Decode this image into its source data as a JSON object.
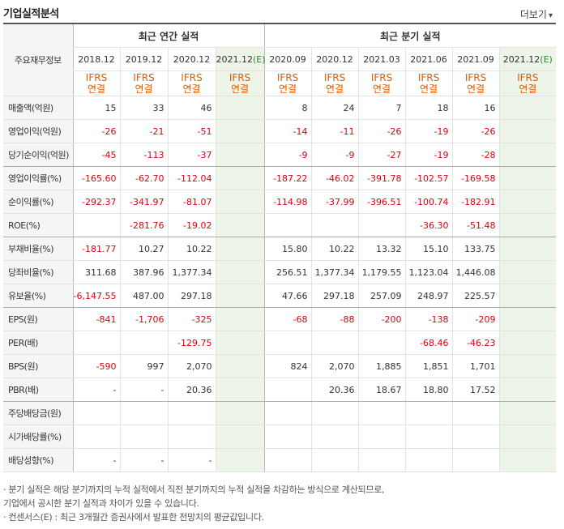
{
  "section_title": "기업실적분석",
  "more_label": "더보기",
  "more_icon": "chevron-down-icon",
  "head_label": "주요재무정보",
  "group_annual": "최근 연간 실적",
  "group_quarter": "최근 분기 실적",
  "periods": [
    "2018.12",
    "2019.12",
    "2020.12",
    "2021.12(E)",
    "2020.09",
    "2020.12",
    "2021.03",
    "2021.06",
    "2021.09",
    "2021.12(E)"
  ],
  "ifrs": "IFRS",
  "consolidated": "연결",
  "rows": [
    {
      "label": "매출액(억원)",
      "values": [
        "15",
        "33",
        "46",
        "",
        "8",
        "24",
        "7",
        "18",
        "16",
        ""
      ]
    },
    {
      "label": "영업이익(억원)",
      "values": [
        "-26",
        "-21",
        "-51",
        "",
        "-14",
        "-11",
        "-26",
        "-19",
        "-26",
        ""
      ]
    },
    {
      "label": "당기순이익(억원)",
      "values": [
        "-45",
        "-113",
        "-37",
        "",
        "-9",
        "-9",
        "-27",
        "-19",
        "-28",
        ""
      ]
    },
    {
      "label": "영업이익률(%)",
      "values": [
        "-165.60",
        "-62.70",
        "-112.04",
        "",
        "-187.22",
        "-46.02",
        "-391.78",
        "-102.57",
        "-169.58",
        ""
      ]
    },
    {
      "label": "순이익률(%)",
      "values": [
        "-292.37",
        "-341.97",
        "-81.07",
        "",
        "-114.98",
        "-37.99",
        "-396.51",
        "-100.74",
        "-182.91",
        ""
      ]
    },
    {
      "label": "ROE(%)",
      "values": [
        "",
        "-281.76",
        "-19.02",
        "",
        "",
        "",
        "",
        "-36.30",
        "-51.48",
        ""
      ]
    },
    {
      "label": "부채비율(%)",
      "values": [
        "-181.77",
        "10.27",
        "10.22",
        "",
        "15.80",
        "10.22",
        "13.32",
        "15.10",
        "133.75",
        ""
      ]
    },
    {
      "label": "당좌비율(%)",
      "values": [
        "311.68",
        "387.96",
        "1,377.34",
        "",
        "256.51",
        "1,377.34",
        "1,179.55",
        "1,123.04",
        "1,446.08",
        ""
      ]
    },
    {
      "label": "유보율(%)",
      "values": [
        "-6,147.55",
        "487.00",
        "297.18",
        "",
        "47.66",
        "297.18",
        "257.09",
        "248.97",
        "225.57",
        ""
      ]
    },
    {
      "label": "EPS(원)",
      "values": [
        "-841",
        "-1,706",
        "-325",
        "",
        "-68",
        "-88",
        "-200",
        "-138",
        "-209",
        ""
      ]
    },
    {
      "label": "PER(배)",
      "values": [
        "",
        "",
        "-129.75",
        "",
        "",
        "",
        "",
        "-68.46",
        "-46.23",
        ""
      ]
    },
    {
      "label": "BPS(원)",
      "values": [
        "-590",
        "997",
        "2,070",
        "",
        "824",
        "2,070",
        "1,885",
        "1,851",
        "1,701",
        ""
      ]
    },
    {
      "label": "PBR(배)",
      "values": [
        "-",
        "-",
        "20.36",
        "",
        "",
        "20.36",
        "18.67",
        "18.80",
        "17.52",
        ""
      ]
    },
    {
      "label": "주당배당금(원)",
      "values": [
        "",
        "",
        "",
        "",
        "",
        "",
        "",
        "",
        "",
        ""
      ]
    },
    {
      "label": "시가배당률(%)",
      "values": [
        "",
        "",
        "",
        "",
        "",
        "",
        "",
        "",
        "",
        ""
      ]
    },
    {
      "label": "배당성향(%)",
      "values": [
        "-",
        "-",
        "-",
        "",
        "",
        "",
        "",
        "",
        "",
        ""
      ]
    }
  ],
  "notes": [
    "· 분기 실적은 해당 분기까지의 누적 실적에서 직전 분기까지의 누적 실적을 차감하는 방식으로 계산되므로,",
    "   기업에서 공시한 분기 실적과 차이가 있을 수 있습니다.",
    "· 컨센서스(E) : 최근 3개월간 증권사에서 발표한 전망치의 평균값입니다."
  ],
  "colors": {
    "negative": "#e0000b",
    "ifrs": "#e05a00",
    "estimate_bg": "#edf5e8",
    "label_bg": "#f5f5f5"
  }
}
